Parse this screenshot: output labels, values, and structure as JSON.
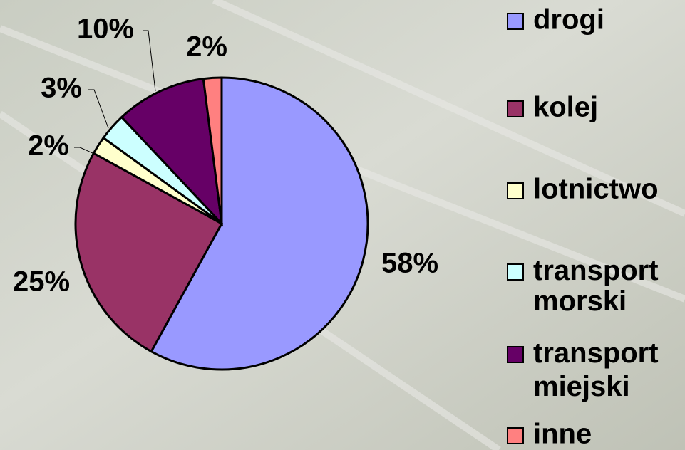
{
  "chart_data": {
    "type": "pie",
    "categories": [
      "drogi",
      "kolej",
      "lotnictwo",
      "transport morski",
      "transport miejski",
      "inne"
    ],
    "values": [
      58,
      25,
      2,
      3,
      10,
      2
    ],
    "value_labels": [
      "58%",
      "25%",
      "2%",
      "3%",
      "10%",
      "2%"
    ],
    "colors": [
      "#9999ff",
      "#993366",
      "#ffffcc",
      "#ccffff",
      "#660066",
      "#ff8080"
    ],
    "legend": "right"
  }
}
